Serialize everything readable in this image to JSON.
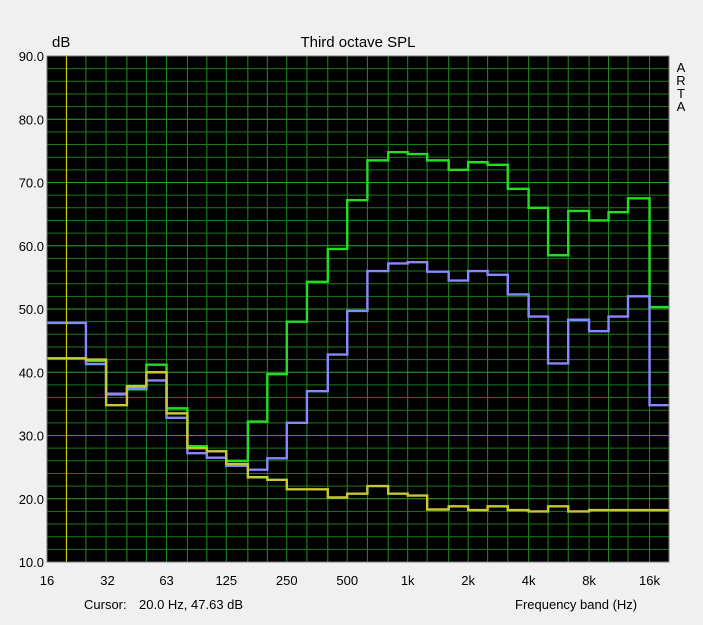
{
  "chart_data": {
    "type": "line",
    "step": true,
    "title": "Third octave SPL",
    "ylabel": "dB",
    "xlabel": "Frequency band (Hz)",
    "ylim": [
      10,
      90
    ],
    "yticks": [
      "90.0",
      "80.0",
      "70.0",
      "60.0",
      "50.0",
      "40.0",
      "30.0",
      "20.0",
      "10.0"
    ],
    "xticks": [
      "16",
      "32",
      "63",
      "125",
      "250",
      "500",
      "1k",
      "2k",
      "4k",
      "8k",
      "16k"
    ],
    "grid": true,
    "x": [
      16,
      20,
      25,
      31.5,
      40,
      50,
      63,
      80,
      100,
      125,
      160,
      200,
      250,
      315,
      400,
      500,
      630,
      800,
      1000,
      1250,
      1600,
      2000,
      2500,
      3150,
      4000,
      5000,
      6300,
      8000,
      10000,
      12500,
      16000,
      20000
    ],
    "series": [
      {
        "color": "#22dd22",
        "values": [
          42.2,
          42.2,
          41.8,
          36.5,
          37.3,
          41.2,
          34.3,
          28.3,
          27.5,
          26.0,
          32.2,
          39.7,
          48.0,
          54.3,
          59.5,
          67.2,
          73.5,
          74.8,
          74.5,
          73.5,
          72.0,
          73.2,
          72.8,
          69.0,
          66.0,
          58.5,
          65.5,
          64.0,
          65.3,
          67.5,
          50.3,
          50.3
        ]
      },
      {
        "color": "#8888ff",
        "values": [
          47.8,
          47.8,
          41.3,
          36.6,
          37.5,
          38.7,
          32.8,
          27.2,
          26.5,
          25.2,
          24.6,
          26.4,
          32.0,
          37.0,
          42.8,
          49.7,
          56.0,
          57.2,
          57.4,
          55.9,
          54.5,
          56.0,
          55.4,
          52.3,
          48.8,
          41.4,
          48.3,
          46.5,
          48.8,
          52.0,
          34.8,
          34.8
        ]
      },
      {
        "color": "#c8c832",
        "values": [
          42.2,
          42.2,
          42.0,
          34.8,
          37.8,
          40.0,
          33.5,
          28.0,
          27.5,
          25.5,
          23.4,
          23.0,
          21.5,
          21.5,
          20.2,
          20.8,
          22.0,
          20.8,
          20.5,
          18.3,
          18.8,
          18.2,
          18.8,
          18.2,
          18.0,
          18.8,
          18.0,
          18.2,
          18.2,
          18.2,
          18.2,
          18.2
        ]
      }
    ],
    "cursor": {
      "x": 20.0,
      "y": 47.63,
      "color": "#cccc00"
    }
  },
  "status": {
    "cursor_label": "Cursor:",
    "cursor_value": "20.0 Hz, 47.63 dB",
    "band_label": "Frequency band (Hz)"
  },
  "brand": [
    "A",
    "R",
    "T",
    "A"
  ]
}
